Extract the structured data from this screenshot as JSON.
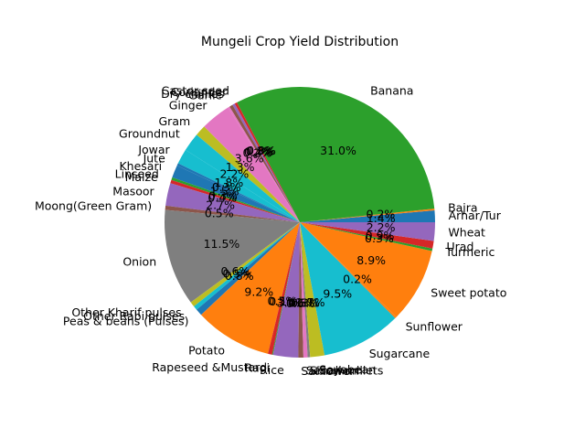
{
  "chart_data": {
    "type": "pie",
    "title": "Mungeli Crop Yield Distribution",
    "start_angle_deg": 0,
    "direction": "counterclockwise",
    "labels": [
      "Arhar/Tur",
      "Bajra",
      "Banana",
      "Castor seed",
      "Coriander",
      "Dry chillies",
      "Garlic",
      "Ginger",
      "Gram",
      "Groundnut",
      "Jowar",
      "Jute",
      "Khesari",
      "Linseed",
      "Maize",
      "Masoor",
      "Moong(Green Gram)",
      "Onion",
      "Other Kharif pulses",
      "Other Rabi pulses",
      "Peas & beans (Pulses)",
      "Potato",
      "Rapeseed &Mustard",
      "Ragi",
      "Rice",
      "Safflower",
      "Sesamum",
      "Small millets",
      "Soyabean",
      "Sugarcane",
      "Sunflower",
      "Sweet potato",
      "Turmeric",
      "Urad",
      "Wheat"
    ],
    "values": [
      1.4,
      0.2,
      31.0,
      0.3,
      0.3,
      0.4,
      0.2,
      3.6,
      1.3,
      2.2,
      1.8,
      0.3,
      1.5,
      0.3,
      0.4,
      2.7,
      0.5,
      11.5,
      0.6,
      0.5,
      0.8,
      9.2,
      0.5,
      0.1,
      3.0,
      0.6,
      0.5,
      0.3,
      1.7,
      9.5,
      0.2,
      8.9,
      0.3,
      0.9,
      2.2
    ],
    "percent_labels": [
      "1.4%",
      "0.2%",
      "31.0%",
      "0.3%",
      "0.3%",
      "0.4%",
      "0.2%",
      "3.6%",
      "1.3%",
      "2.2%",
      "1.8%",
      "0.3%",
      "1.5%",
      "0.3%",
      "0.4%",
      "2.7%",
      "0.5%",
      "11.5%",
      "0.6%",
      "0.5%",
      "0.8%",
      "9.2%",
      "0.5%",
      "0.1%",
      "3.0%",
      "0.6%",
      "0.5%",
      "0.3%",
      "1.7%",
      "9.5%",
      "0.2%",
      "8.9%",
      "0.3%",
      "0.9%",
      "2.2%"
    ],
    "colors": [
      "#1f77b4",
      "#ff7f0e",
      "#2ca02c",
      "#d62728",
      "#9467bd",
      "#8c564b",
      "#e377c2",
      "#e377c2",
      "#bcbd22",
      "#17becf",
      "#17becf",
      "#1f77b4",
      "#1f77b4",
      "#2ca02c",
      "#d62728",
      "#9467bd",
      "#8c564b",
      "#7f7f7f",
      "#bcbd22",
      "#17becf",
      "#1f77b4",
      "#ff7f0e",
      "#d62728",
      "#2ca02c",
      "#9467bd",
      "#8c564b",
      "#e377c2",
      "#7f7f7f",
      "#bcbd22",
      "#17becf",
      "#ff7f0e",
      "#ff7f0e",
      "#2ca02c",
      "#d62728",
      "#9467bd"
    ]
  }
}
